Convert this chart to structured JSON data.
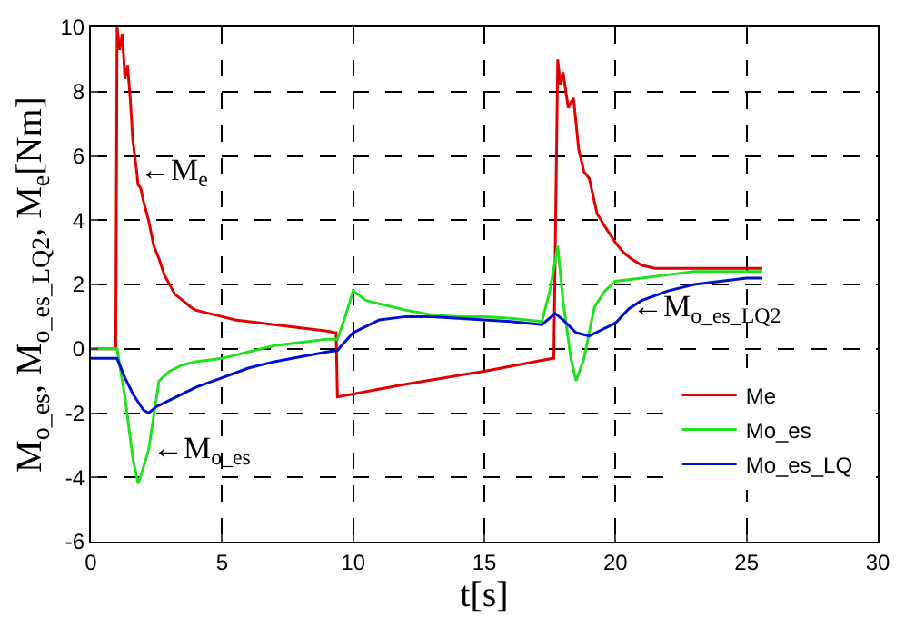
{
  "chart_data": {
    "type": "line",
    "xlabel": "t[s]",
    "ylabel": "M$_{o_es}$, M$_{o_es_LQ2}$, M$_{e}$[Nm]",
    "xlim": [
      0,
      30
    ],
    "xticks": [
      0,
      5,
      10,
      15,
      20,
      25,
      30
    ],
    "ylim": [
      -6,
      10
    ],
    "yticks": [
      -6,
      -4,
      -2,
      0,
      2,
      4,
      6,
      8,
      10
    ],
    "grid": true,
    "legend": "bottom right",
    "line_style": "solid",
    "marker": "none",
    "series": [
      {
        "name": "Me",
        "color": "#e00000",
        "x": [
          0,
          0.95,
          1.0,
          1.1,
          1.2,
          1.3,
          1.4,
          1.5,
          1.6,
          1.75,
          1.8,
          1.9,
          2.0,
          2.1,
          2.2,
          2.4,
          2.6,
          2.8,
          3.0,
          3.2,
          3.5,
          3.8,
          4.0,
          4.5,
          5.0,
          5.5,
          6.0,
          6.5,
          7.0,
          7.5,
          8.0,
          8.5,
          9.0,
          9.3,
          9.35,
          9.4,
          12,
          15,
          17.6,
          17.65,
          17.8,
          17.9,
          18.0,
          18.2,
          18.4,
          18.6,
          18.8,
          19.0,
          19.3,
          19.6,
          20.0,
          20.3,
          20.6,
          21.0,
          21.5,
          22,
          23,
          24,
          25,
          25.6
        ],
        "values": [
          0,
          0,
          10,
          9.3,
          9.8,
          8.4,
          8.8,
          7.8,
          6.5,
          5.5,
          5.1,
          5.0,
          4.6,
          4.3,
          4.0,
          3.2,
          2.8,
          2.3,
          2.0,
          1.7,
          1.5,
          1.3,
          1.2,
          1.1,
          1.0,
          0.9,
          0.85,
          0.8,
          0.75,
          0.7,
          0.65,
          0.6,
          0.55,
          0.5,
          0.5,
          -1.5,
          -1.1,
          -0.7,
          -0.3,
          -0.3,
          9.0,
          8.2,
          8.6,
          7.5,
          7.8,
          6.2,
          5.5,
          5.3,
          4.2,
          3.8,
          3.3,
          3.0,
          2.8,
          2.6,
          2.5,
          2.5,
          2.5,
          2.5,
          2.5,
          2.5
        ]
      },
      {
        "name": "Mo_es",
        "color": "#20e020",
        "x": [
          0,
          1.0,
          1.3,
          1.6,
          1.8,
          2.0,
          2.2,
          2.6,
          3.0,
          3.5,
          4,
          5,
          6,
          7,
          8,
          9,
          9.4,
          9.7,
          10.0,
          10.5,
          11,
          12,
          13,
          14,
          15,
          16,
          17.2,
          17.5,
          17.8,
          18.0,
          18.3,
          18.5,
          18.8,
          19.2,
          19.6,
          20.0,
          21,
          22,
          23,
          24,
          25,
          25.6
        ],
        "values": [
          0,
          0,
          -1.5,
          -3.4,
          -4.2,
          -3.7,
          -3.15,
          -1.0,
          -0.7,
          -0.5,
          -0.4,
          -0.3,
          -0.1,
          0.1,
          0.2,
          0.3,
          0.3,
          1.0,
          1.8,
          1.5,
          1.4,
          1.2,
          1.05,
          1.0,
          1.0,
          0.95,
          0.85,
          1.8,
          3.2,
          1.5,
          -0.3,
          -1.0,
          -0.3,
          1.3,
          1.8,
          2.1,
          2.2,
          2.3,
          2.4,
          2.4,
          2.4,
          2.4
        ]
      },
      {
        "name": "Mo_es_LQ",
        "color": "#0010d0",
        "x": [
          0,
          1.0,
          1.3,
          1.6,
          2.0,
          2.2,
          2.5,
          3.0,
          4,
          5,
          6,
          7,
          8,
          9,
          9.4,
          10,
          11,
          12,
          13,
          14,
          15,
          16,
          17.2,
          17.7,
          18.0,
          18.5,
          19.0,
          19.5,
          20,
          20.5,
          21,
          22,
          23,
          24,
          25,
          25.6
        ],
        "values": [
          -0.3,
          -0.3,
          -0.9,
          -1.4,
          -1.9,
          -2.0,
          -1.8,
          -1.6,
          -1.2,
          -0.9,
          -0.6,
          -0.4,
          -0.25,
          -0.1,
          -0.05,
          0.5,
          0.9,
          1.0,
          1.0,
          0.95,
          0.9,
          0.85,
          0.75,
          1.1,
          0.9,
          0.5,
          0.4,
          0.6,
          0.8,
          1.24,
          1.5,
          1.8,
          2.0,
          2.1,
          2.2,
          2.2
        ]
      }
    ],
    "annotations": [
      {
        "text": "←M$_{e}$",
        "x": 1.75,
        "y": 5.5
      },
      {
        "text": "←M$_{o_es}$",
        "x": 2.2,
        "y": -3.15
      },
      {
        "text": "←M$_{o_es_LQ2}$",
        "x": 20.5,
        "y": 1.24
      }
    ]
  }
}
